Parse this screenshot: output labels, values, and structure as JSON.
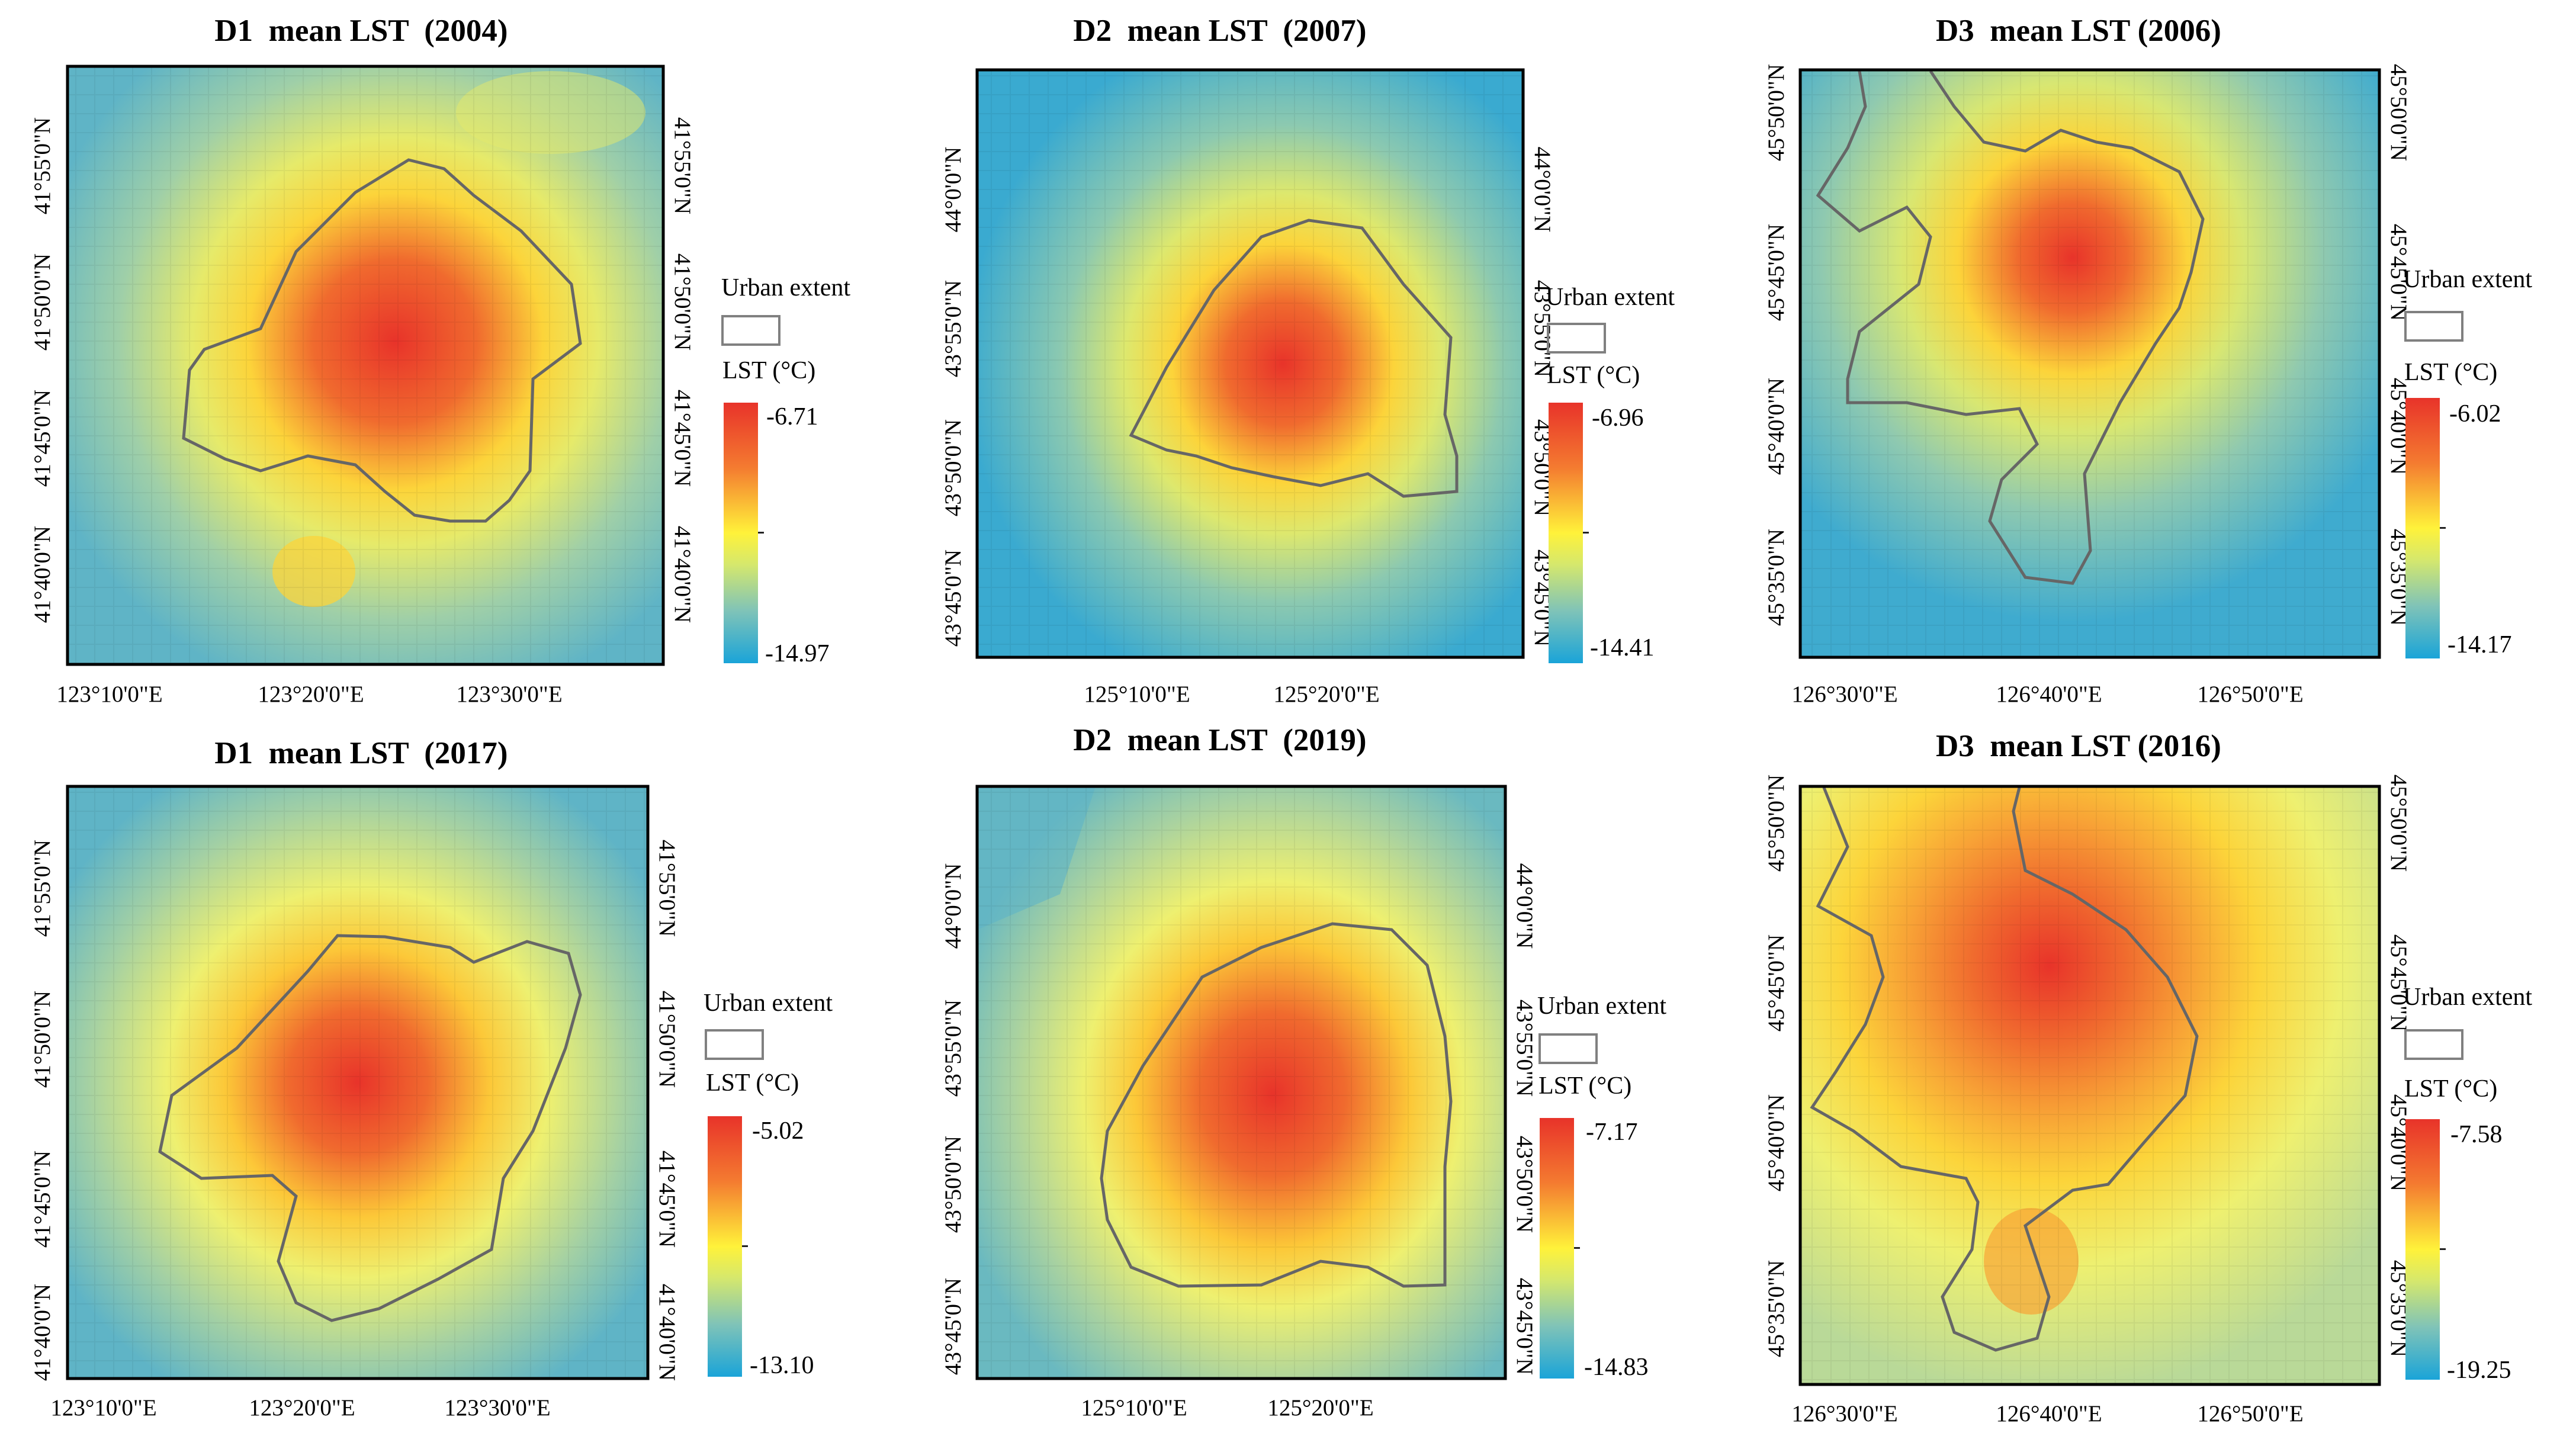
{
  "figure": {
    "panels": [
      {
        "title": "D1  mean LST  (2004)",
        "urban_label": "Urban extent",
        "lst_label": "LST (°C)",
        "lst_max": "-6.71",
        "lst_min": "-14.97",
        "lat_ticks": [
          "41°55'0\"N",
          "41°50'0\"N",
          "41°45'0\"N",
          "41°40'0\"N"
        ],
        "lon_ticks": [
          "123°10'0\"E",
          "123°20'0\"E",
          "123°30'0\"E"
        ]
      },
      {
        "title": "D2  mean LST  (2007)",
        "urban_label": "Urban extent",
        "lst_label": "LST (°C)",
        "lst_max": "-6.96",
        "lst_min": "-14.41",
        "lat_ticks": [
          "44°0'0\"N",
          "43°55'0\"N",
          "43°50'0\"N",
          "43°45'0\"N"
        ],
        "lon_ticks": [
          "125°10'0\"E",
          "125°20'0\"E"
        ]
      },
      {
        "title": "D3  mean LST (2006)",
        "urban_label": "Urban extent",
        "lst_label": "LST (°C)",
        "lst_max": "-6.02",
        "lst_min": "-14.17",
        "lat_ticks": [
          "45°50'0\"N",
          "45°45'0\"N",
          "45°40'0\"N",
          "45°35'0\"N"
        ],
        "lon_ticks": [
          "126°30'0\"E",
          "126°40'0\"E",
          "126°50'0\"E"
        ]
      },
      {
        "title": "D1  mean LST  (2017)",
        "urban_label": "Urban extent",
        "lst_label": "LST (°C)",
        "lst_max": "-5.02",
        "lst_min": "-13.10",
        "lat_ticks": [
          "41°55'0\"N",
          "41°50'0\"N",
          "41°45'0\"N",
          "41°40'0\"N"
        ],
        "lon_ticks": [
          "123°10'0\"E",
          "123°20'0\"E",
          "123°30'0\"E"
        ]
      },
      {
        "title": "D2  mean LST  (2019)",
        "urban_label": "Urban extent",
        "lst_label": "LST (°C)",
        "lst_max": "-7.17",
        "lst_min": "-14.83",
        "lat_ticks": [
          "44°0'0\"N",
          "43°55'0\"N",
          "43°50'0\"N",
          "43°45'0\"N"
        ],
        "lon_ticks": [
          "125°10'0\"E",
          "125°20'0\"E"
        ]
      },
      {
        "title": "D3  mean LST (2016)",
        "urban_label": "Urban extent",
        "lst_label": "LST (°C)",
        "lst_max": "-7.58",
        "lst_min": "-19.25",
        "lat_ticks": [
          "45°50'0\"N",
          "45°45'0\"N",
          "45°40'0\"N",
          "45°35'0\"N"
        ],
        "lon_ticks": [
          "126°30'0\"E",
          "126°40'0\"E",
          "126°50'0\"E"
        ]
      }
    ]
  },
  "colors": {
    "hot": "#e8332a",
    "warm": "#f47b30",
    "mid": "#fff23a",
    "cool": "#7fc3b8",
    "cold": "#1aa4d8",
    "urban_outline": "#666666",
    "frame": "#000000"
  }
}
